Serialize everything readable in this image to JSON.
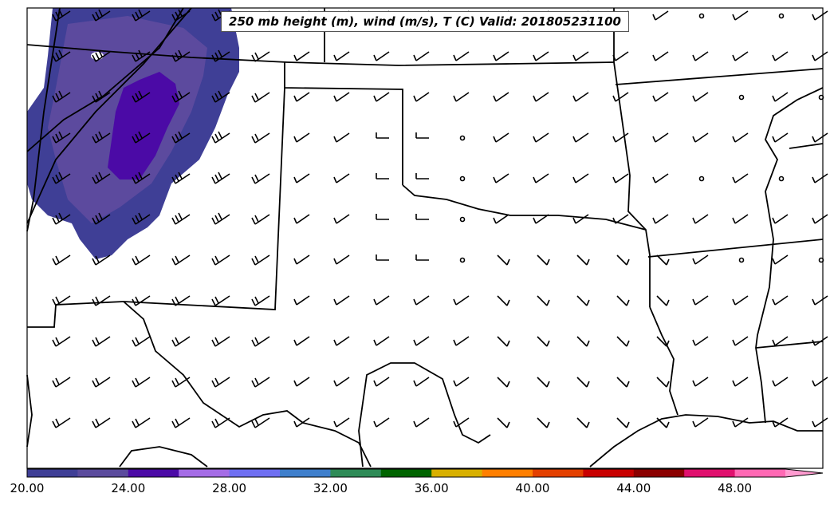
{
  "title": "250 mb height (m), wind (m/s), T (C) Valid: 201805231100",
  "colorbar": {
    "labels": [
      "20.00",
      "24.00",
      "28.00",
      "32.00",
      "36.00",
      "40.00",
      "44.00",
      "48.00"
    ],
    "colors": [
      "#3f3f96",
      "#5b4b9d",
      "#4b0aa6",
      "#a56ce6",
      "#6f6ff2",
      "#3f7fcc",
      "#2e8b57",
      "#006400",
      "#d8b000",
      "#ff7f00",
      "#e34000",
      "#c80000",
      "#8b0000",
      "#e0106e",
      "#ff69b4",
      "#ff9bd0"
    ]
  },
  "temperature_colors": {
    "light": "#5c4a9e",
    "medium": "#3f3f96",
    "dark": "#4b0aa6"
  }
}
